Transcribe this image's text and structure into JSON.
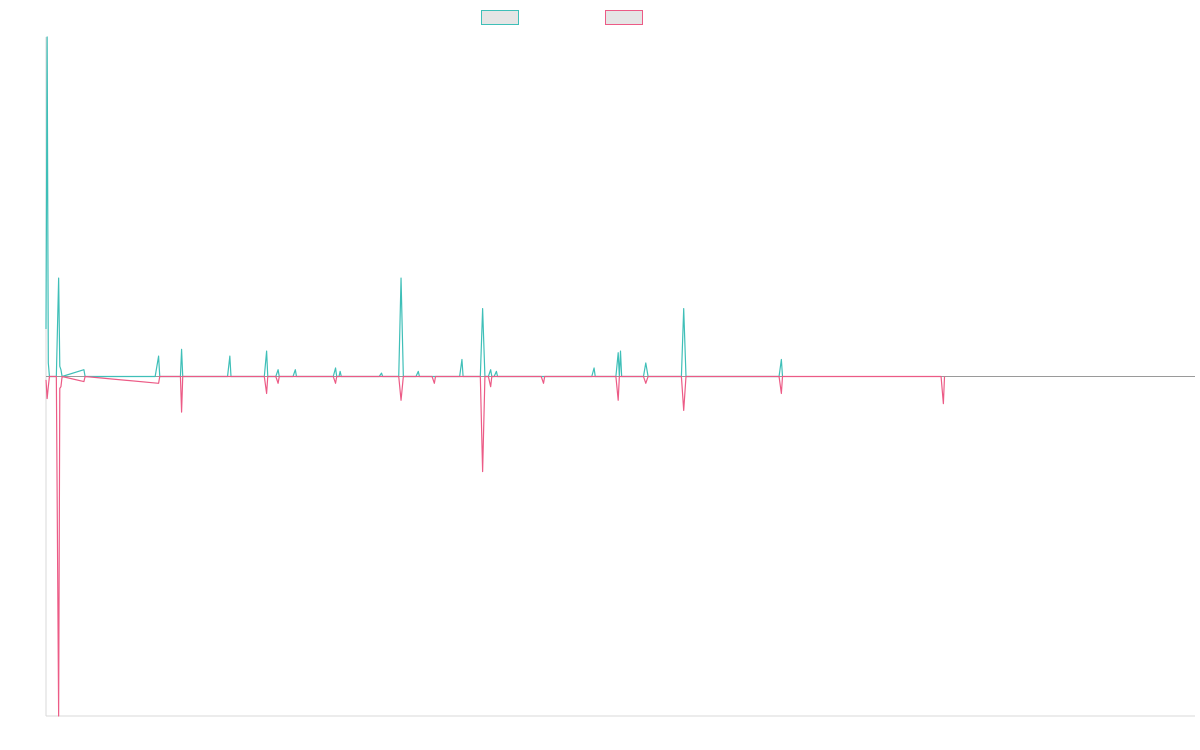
{
  "chart_data": {
    "type": "line",
    "title": "",
    "xlabel": "",
    "ylabel": "",
    "grid": false,
    "legend_placement": "top-center",
    "xlim": [
      0,
      1000
    ],
    "ylim": [
      -100,
      100
    ],
    "series": [
      {
        "color": "#3fbfb8",
        "points": [
          [
            0,
            14
          ],
          [
            1,
            100
          ],
          [
            2,
            4
          ],
          [
            3,
            0
          ],
          [
            9,
            0
          ],
          [
            11,
            29
          ],
          [
            12,
            3
          ],
          [
            13,
            2
          ],
          [
            14,
            0
          ],
          [
            33,
            2
          ],
          [
            34,
            0
          ],
          [
            95,
            0
          ],
          [
            98,
            6
          ],
          [
            99,
            0
          ],
          [
            117,
            0
          ],
          [
            118,
            8
          ],
          [
            119,
            0
          ],
          [
            158,
            0
          ],
          [
            160,
            6
          ],
          [
            161,
            0
          ],
          [
            190,
            0
          ],
          [
            192,
            7.5
          ],
          [
            193,
            0
          ],
          [
            200,
            0
          ],
          [
            202,
            2
          ],
          [
            203,
            0
          ],
          [
            215,
            0
          ],
          [
            217,
            2
          ],
          [
            218,
            0
          ],
          [
            250,
            0
          ],
          [
            252,
            2.5
          ],
          [
            253,
            0
          ],
          [
            255,
            0
          ],
          [
            256,
            1.5
          ],
          [
            257,
            0
          ],
          [
            290,
            0
          ],
          [
            292,
            1
          ],
          [
            293,
            0
          ],
          [
            307,
            0
          ],
          [
            309,
            29
          ],
          [
            311,
            0
          ],
          [
            322,
            0
          ],
          [
            324,
            1.5
          ],
          [
            325,
            0
          ],
          [
            360,
            0
          ],
          [
            362,
            5
          ],
          [
            363,
            0
          ],
          [
            378,
            0
          ],
          [
            380,
            20
          ],
          [
            382,
            0
          ],
          [
            385,
            0
          ],
          [
            387,
            2
          ],
          [
            388,
            0
          ],
          [
            390,
            0
          ],
          [
            392,
            1.5
          ],
          [
            393,
            0
          ],
          [
            475,
            0
          ],
          [
            477,
            2.5
          ],
          [
            478,
            0
          ],
          [
            496,
            0
          ],
          [
            498,
            7
          ],
          [
            499,
            0
          ],
          [
            500,
            7.5
          ],
          [
            501,
            0
          ],
          [
            520,
            0
          ],
          [
            522,
            4
          ],
          [
            524,
            0
          ],
          [
            553,
            0
          ],
          [
            555,
            20
          ],
          [
            557,
            0
          ],
          [
            638,
            0
          ],
          [
            640,
            5
          ],
          [
            641,
            0
          ]
        ]
      },
      {
        "color": "#ec5b86",
        "points": [
          [
            0,
            -1
          ],
          [
            1,
            -6.5
          ],
          [
            2,
            -3
          ],
          [
            3,
            0
          ],
          [
            9,
            0
          ],
          [
            11,
            -100
          ],
          [
            12,
            -3.5
          ],
          [
            13,
            -3
          ],
          [
            14,
            0
          ],
          [
            33,
            -1.5
          ],
          [
            34,
            0
          ],
          [
            98,
            -2
          ],
          [
            99,
            0
          ],
          [
            117,
            0
          ],
          [
            118,
            -10.5
          ],
          [
            119,
            0
          ],
          [
            190,
            0
          ],
          [
            192,
            -5
          ],
          [
            193,
            0
          ],
          [
            200,
            0
          ],
          [
            202,
            -2
          ],
          [
            203,
            0
          ],
          [
            250,
            0
          ],
          [
            252,
            -2
          ],
          [
            253,
            0
          ],
          [
            307,
            0
          ],
          [
            309,
            -7
          ],
          [
            311,
            0
          ],
          [
            336,
            0
          ],
          [
            338,
            -2
          ],
          [
            339,
            0
          ],
          [
            378,
            0
          ],
          [
            380,
            -28
          ],
          [
            382,
            0
          ],
          [
            385,
            0
          ],
          [
            387,
            -3
          ],
          [
            388,
            0
          ],
          [
            431,
            0
          ],
          [
            433,
            -2
          ],
          [
            434,
            0
          ],
          [
            496,
            0
          ],
          [
            498,
            -7
          ],
          [
            499,
            0
          ],
          [
            520,
            0
          ],
          [
            522,
            -2
          ],
          [
            524,
            0
          ],
          [
            553,
            0
          ],
          [
            555,
            -10
          ],
          [
            557,
            0
          ],
          [
            638,
            0
          ],
          [
            640,
            -5
          ],
          [
            641,
            0
          ],
          [
            779,
            0
          ],
          [
            781,
            -8
          ],
          [
            782,
            0
          ]
        ]
      }
    ]
  }
}
